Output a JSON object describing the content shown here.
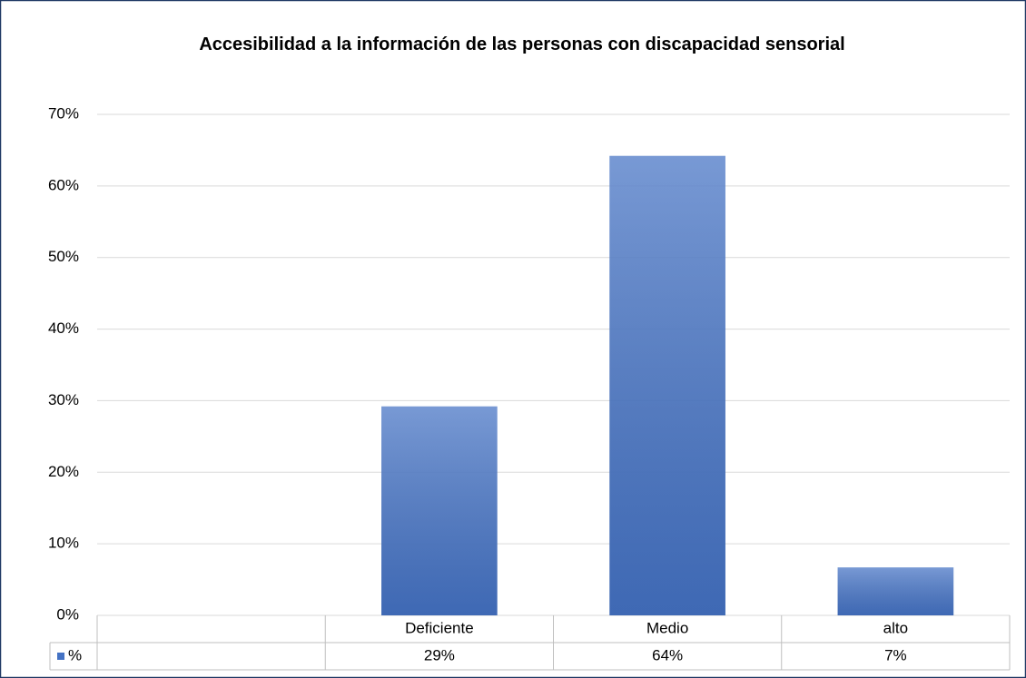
{
  "chart_data": {
    "type": "bar",
    "title": "Accesibilidad a la información de las personas con discapacidad sensorial",
    "categories": [
      null,
      "Deficiente",
      "Medio",
      "alto"
    ],
    "series": [
      {
        "name": "%",
        "color": "#4472c4",
        "values": [
          null,
          29.2,
          64.2,
          6.7
        ],
        "value_labels": [
          null,
          "29%",
          "64%",
          "7%"
        ]
      }
    ],
    "ylim": [
      0,
      70
    ],
    "yticks": [
      {
        "value": 0,
        "label": "0%"
      },
      {
        "value": 10,
        "label": "10%"
      },
      {
        "value": 20,
        "label": "20%"
      },
      {
        "value": 30,
        "label": "30%"
      },
      {
        "value": 40,
        "label": "40%"
      },
      {
        "value": 50,
        "label": "50%"
      },
      {
        "value": 60,
        "label": "60%"
      },
      {
        "value": 70,
        "label": "70%"
      }
    ],
    "grid": true,
    "legend": "table"
  }
}
